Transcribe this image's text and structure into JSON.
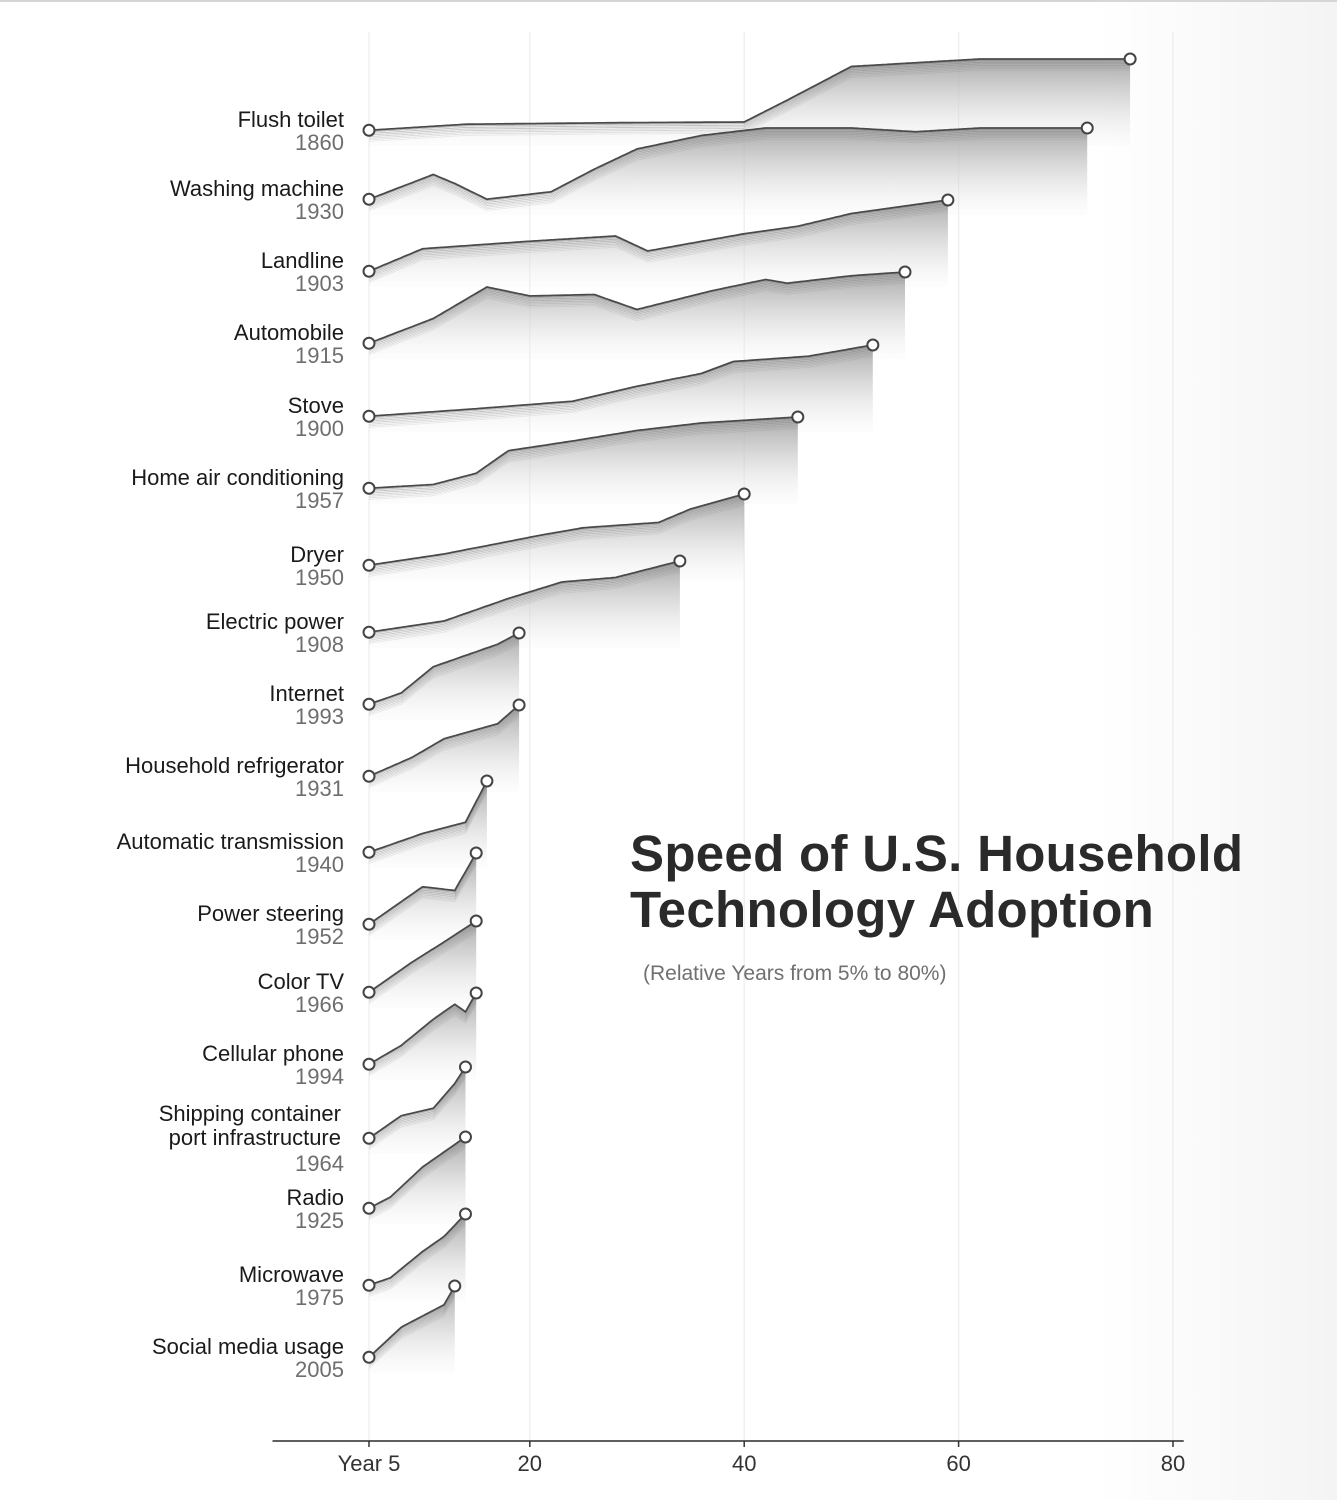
{
  "title_line1": "Speed of U.S. Household",
  "title_line2": "Technology Adoption",
  "subtitle": "(Relative Years from 5% to 80%)",
  "chart_data": {
    "type": "area",
    "title": "Speed of U.S. Household Technology Adoption",
    "subtitle": "(Relative Years from 5% to 80%)",
    "x_tick_labels": [
      "Year 5",
      "20",
      "40",
      "60",
      "80"
    ],
    "x_ticks": [
      5,
      20,
      40,
      60,
      80
    ],
    "xlim": [
      -4,
      81
    ],
    "grid": true,
    "series": [
      {
        "name": "Flush toilet",
        "year": "1860",
        "points": [
          [
            5,
            0.05
          ],
          [
            14,
            0.13
          ],
          [
            28,
            0.15
          ],
          [
            40,
            0.16
          ],
          [
            44,
            0.45
          ],
          [
            50,
            0.9
          ],
          [
            62,
            1.0
          ],
          [
            72,
            1.0
          ],
          [
            76,
            1.0
          ]
        ]
      },
      {
        "name": "Washing machine",
        "year": "1930",
        "points": [
          [
            5,
            0.05
          ],
          [
            11,
            0.38
          ],
          [
            13,
            0.26
          ],
          [
            16,
            0.05
          ],
          [
            22,
            0.15
          ],
          [
            26,
            0.45
          ],
          [
            30,
            0.72
          ],
          [
            36,
            0.9
          ],
          [
            42,
            1.0
          ],
          [
            50,
            1.0
          ],
          [
            56,
            0.95
          ],
          [
            62,
            1.0
          ],
          [
            72,
            1.0
          ]
        ]
      },
      {
        "name": "Landline",
        "year": "1903",
        "points": [
          [
            5,
            0.05
          ],
          [
            10,
            0.35
          ],
          [
            20,
            0.45
          ],
          [
            28,
            0.52
          ],
          [
            31,
            0.32
          ],
          [
            40,
            0.55
          ],
          [
            45,
            0.65
          ],
          [
            50,
            0.82
          ],
          [
            59,
            1.0
          ]
        ]
      },
      {
        "name": "Automobile",
        "year": "1915",
        "points": [
          [
            5,
            0.05
          ],
          [
            11,
            0.38
          ],
          [
            16,
            0.8
          ],
          [
            20,
            0.68
          ],
          [
            26,
            0.7
          ],
          [
            30,
            0.5
          ],
          [
            37,
            0.75
          ],
          [
            42,
            0.9
          ],
          [
            44,
            0.85
          ],
          [
            50,
            0.95
          ],
          [
            55,
            1.0
          ]
        ]
      },
      {
        "name": "Stove",
        "year": "1900",
        "points": [
          [
            5,
            0.05
          ],
          [
            15,
            0.15
          ],
          [
            24,
            0.25
          ],
          [
            30,
            0.45
          ],
          [
            36,
            0.62
          ],
          [
            39,
            0.78
          ],
          [
            46,
            0.85
          ],
          [
            52,
            1.0
          ]
        ]
      },
      {
        "name": "Home air conditioning",
        "year": "1957",
        "points": [
          [
            5,
            0.05
          ],
          [
            11,
            0.1
          ],
          [
            15,
            0.25
          ],
          [
            18,
            0.55
          ],
          [
            24,
            0.68
          ],
          [
            30,
            0.82
          ],
          [
            36,
            0.92
          ],
          [
            45,
            1.0
          ]
        ]
      },
      {
        "name": "Dryer",
        "year": "1950",
        "points": [
          [
            5,
            0.05
          ],
          [
            12,
            0.2
          ],
          [
            21,
            0.45
          ],
          [
            25,
            0.55
          ],
          [
            32,
            0.62
          ],
          [
            35,
            0.8
          ],
          [
            40,
            1.0
          ]
        ]
      },
      {
        "name": "Electric power",
        "year": "1908",
        "points": [
          [
            5,
            0.05
          ],
          [
            12,
            0.2
          ],
          [
            18,
            0.5
          ],
          [
            23,
            0.72
          ],
          [
            28,
            0.78
          ],
          [
            34,
            1.0
          ]
        ]
      },
      {
        "name": "Internet",
        "year": "1993",
        "points": [
          [
            5,
            0.05
          ],
          [
            8,
            0.2
          ],
          [
            11,
            0.55
          ],
          [
            14,
            0.7
          ],
          [
            17,
            0.85
          ],
          [
            19,
            1.0
          ]
        ]
      },
      {
        "name": "Household refrigerator",
        "year": "1931",
        "points": [
          [
            5,
            0.05
          ],
          [
            9,
            0.3
          ],
          [
            12,
            0.55
          ],
          [
            17,
            0.75
          ],
          [
            19,
            1.0
          ]
        ]
      },
      {
        "name": "Automatic transmission",
        "year": "1940",
        "points": [
          [
            5,
            0.05
          ],
          [
            10,
            0.3
          ],
          [
            14,
            0.45
          ],
          [
            16,
            1.0
          ]
        ]
      },
      {
        "name": "Power steering",
        "year": "1952",
        "points": [
          [
            5,
            0.05
          ],
          [
            10,
            0.55
          ],
          [
            13,
            0.5
          ],
          [
            15,
            1.0
          ]
        ]
      },
      {
        "name": "Color TV",
        "year": "1966",
        "points": [
          [
            5,
            0.05
          ],
          [
            9,
            0.45
          ],
          [
            12,
            0.72
          ],
          [
            15,
            1.0
          ]
        ]
      },
      {
        "name": "Cellular phone",
        "year": "1994",
        "points": [
          [
            5,
            0.05
          ],
          [
            8,
            0.3
          ],
          [
            11,
            0.65
          ],
          [
            13,
            0.85
          ],
          [
            14,
            0.75
          ],
          [
            15,
            1.0
          ]
        ]
      },
      {
        "name": "Shipping container port infrastructure",
        "year": "1964",
        "points": [
          [
            5,
            0.05
          ],
          [
            8,
            0.35
          ],
          [
            11,
            0.45
          ],
          [
            13,
            0.78
          ],
          [
            14,
            1.0
          ]
        ]
      },
      {
        "name": "Radio",
        "year": "1925",
        "points": [
          [
            5,
            0.05
          ],
          [
            7,
            0.2
          ],
          [
            10,
            0.6
          ],
          [
            12,
            0.8
          ],
          [
            14,
            1.0
          ]
        ]
      },
      {
        "name": "Microwave",
        "year": "1975",
        "points": [
          [
            5,
            0.05
          ],
          [
            7,
            0.15
          ],
          [
            10,
            0.5
          ],
          [
            12,
            0.7
          ],
          [
            14,
            1.0
          ]
        ]
      },
      {
        "name": "Social media usage",
        "year": "2005",
        "points": [
          [
            5,
            0.05
          ],
          [
            8,
            0.45
          ],
          [
            10,
            0.6
          ],
          [
            12,
            0.75
          ],
          [
            13,
            1.0
          ]
        ]
      }
    ]
  }
}
